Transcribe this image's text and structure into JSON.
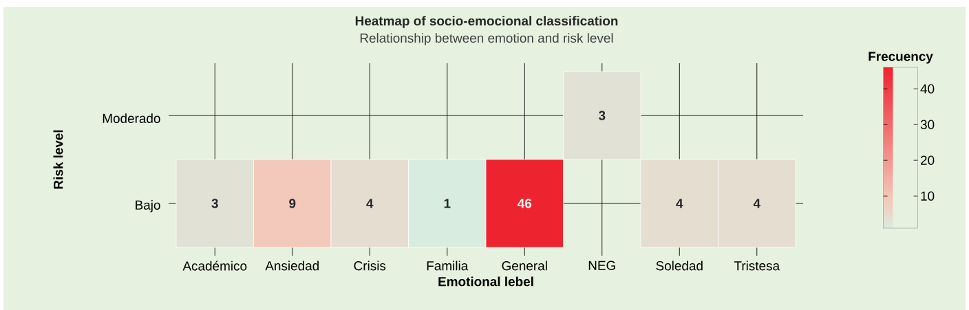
{
  "chart_data": {
    "type": "heatmap",
    "title": "Heatmap of socio-emocional classification",
    "subtitle": "Relationship between emotion and risk level",
    "xlabel": "Emotional lebel",
    "ylabel": "Risk level",
    "clabel": "Frecuency",
    "categories": [
      "Académico",
      "Ansiedad",
      "Crisis",
      "Familia",
      "General",
      "NEG",
      "Soledad",
      "Tristesa"
    ],
    "y_categories": [
      "Moderado",
      "Bajo"
    ],
    "cells": [
      [
        null,
        null,
        null,
        null,
        null,
        3,
        null,
        null
      ],
      [
        3,
        9,
        4,
        1,
        46,
        null,
        4,
        4
      ]
    ],
    "clim": [
      1,
      46
    ],
    "cticks": [
      10,
      20,
      30,
      40
    ],
    "grid": true,
    "data_labels": true
  }
}
